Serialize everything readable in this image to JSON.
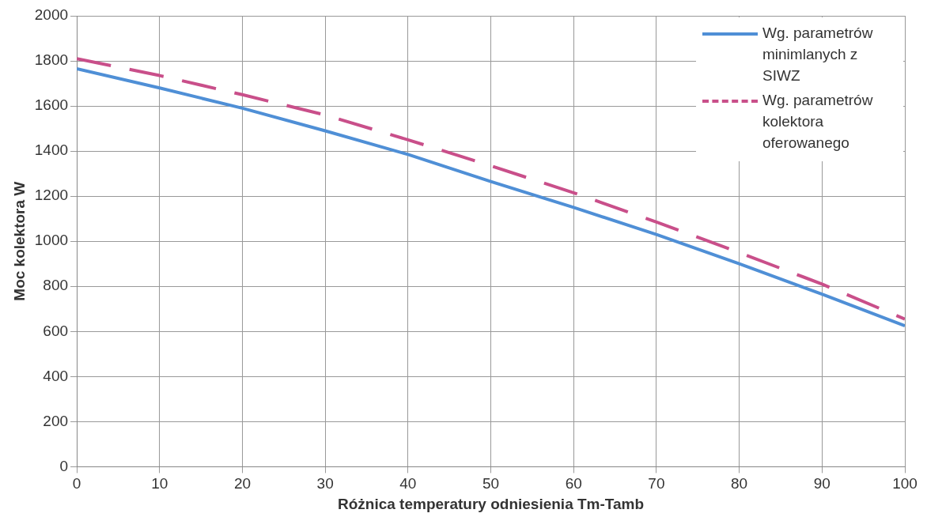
{
  "chart_data": {
    "type": "line",
    "xlabel": "Różnica temperatury odniesienia Tm-Tamb",
    "ylabel": "Moc kolektora W",
    "x": [
      0,
      10,
      20,
      30,
      40,
      50,
      60,
      70,
      80,
      90,
      100
    ],
    "series": [
      {
        "name": "Wg. parametrów minimlanych z SIWZ",
        "color": "#4f8fd6",
        "line_style": "solid",
        "values": [
          1765,
          1680,
          1590,
          1490,
          1385,
          1265,
          1150,
          1030,
          900,
          765,
          625
        ]
      },
      {
        "name": "Wg. parametrów kolektora oferowanego",
        "color": "#c94f8a",
        "line_style": "dashed",
        "values": [
          1810,
          1735,
          1650,
          1560,
          1450,
          1335,
          1215,
          1085,
          950,
          810,
          655
        ]
      }
    ],
    "xlim": [
      0,
      100
    ],
    "xticks": [
      0,
      10,
      20,
      30,
      40,
      50,
      60,
      70,
      80,
      90,
      100
    ],
    "ylim": [
      0,
      2000
    ],
    "yticks": [
      0,
      200,
      400,
      600,
      800,
      1000,
      1200,
      1400,
      1600,
      1800,
      2000
    ],
    "grid": true,
    "legend": "top right",
    "marker": "none"
  }
}
